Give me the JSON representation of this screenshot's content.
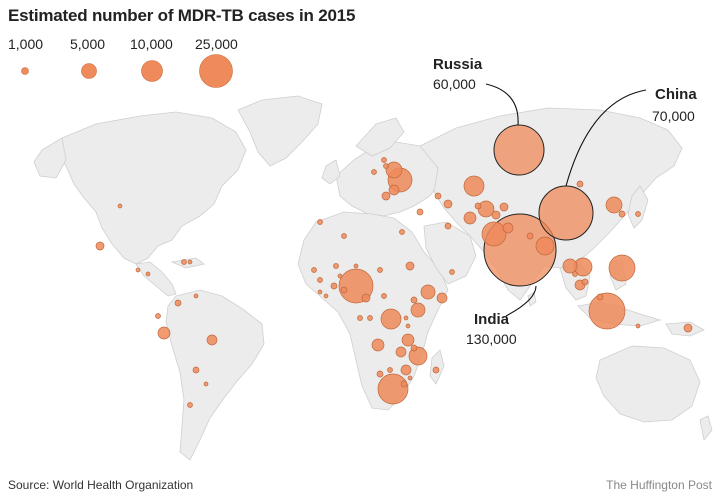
{
  "title": "Estimated number of MDR-TB cases in 2015",
  "legend": {
    "items": [
      {
        "label": "1,000",
        "value": 1000
      },
      {
        "label": "5,000",
        "value": 5000
      },
      {
        "label": "10,000",
        "value": 10000
      },
      {
        "label": "25,000",
        "value": 25000
      }
    ]
  },
  "callouts": [
    {
      "name": "Russia",
      "value": "60,000"
    },
    {
      "name": "China",
      "value": "70,000"
    },
    {
      "name": "India",
      "value": "130,000"
    }
  ],
  "footer": {
    "source": "Source: World Health Organization",
    "credit": "The Huffington Post"
  },
  "colors": {
    "bubble": "#ef8a5a",
    "land": "#ececec",
    "border": "#cfcfcf"
  }
}
